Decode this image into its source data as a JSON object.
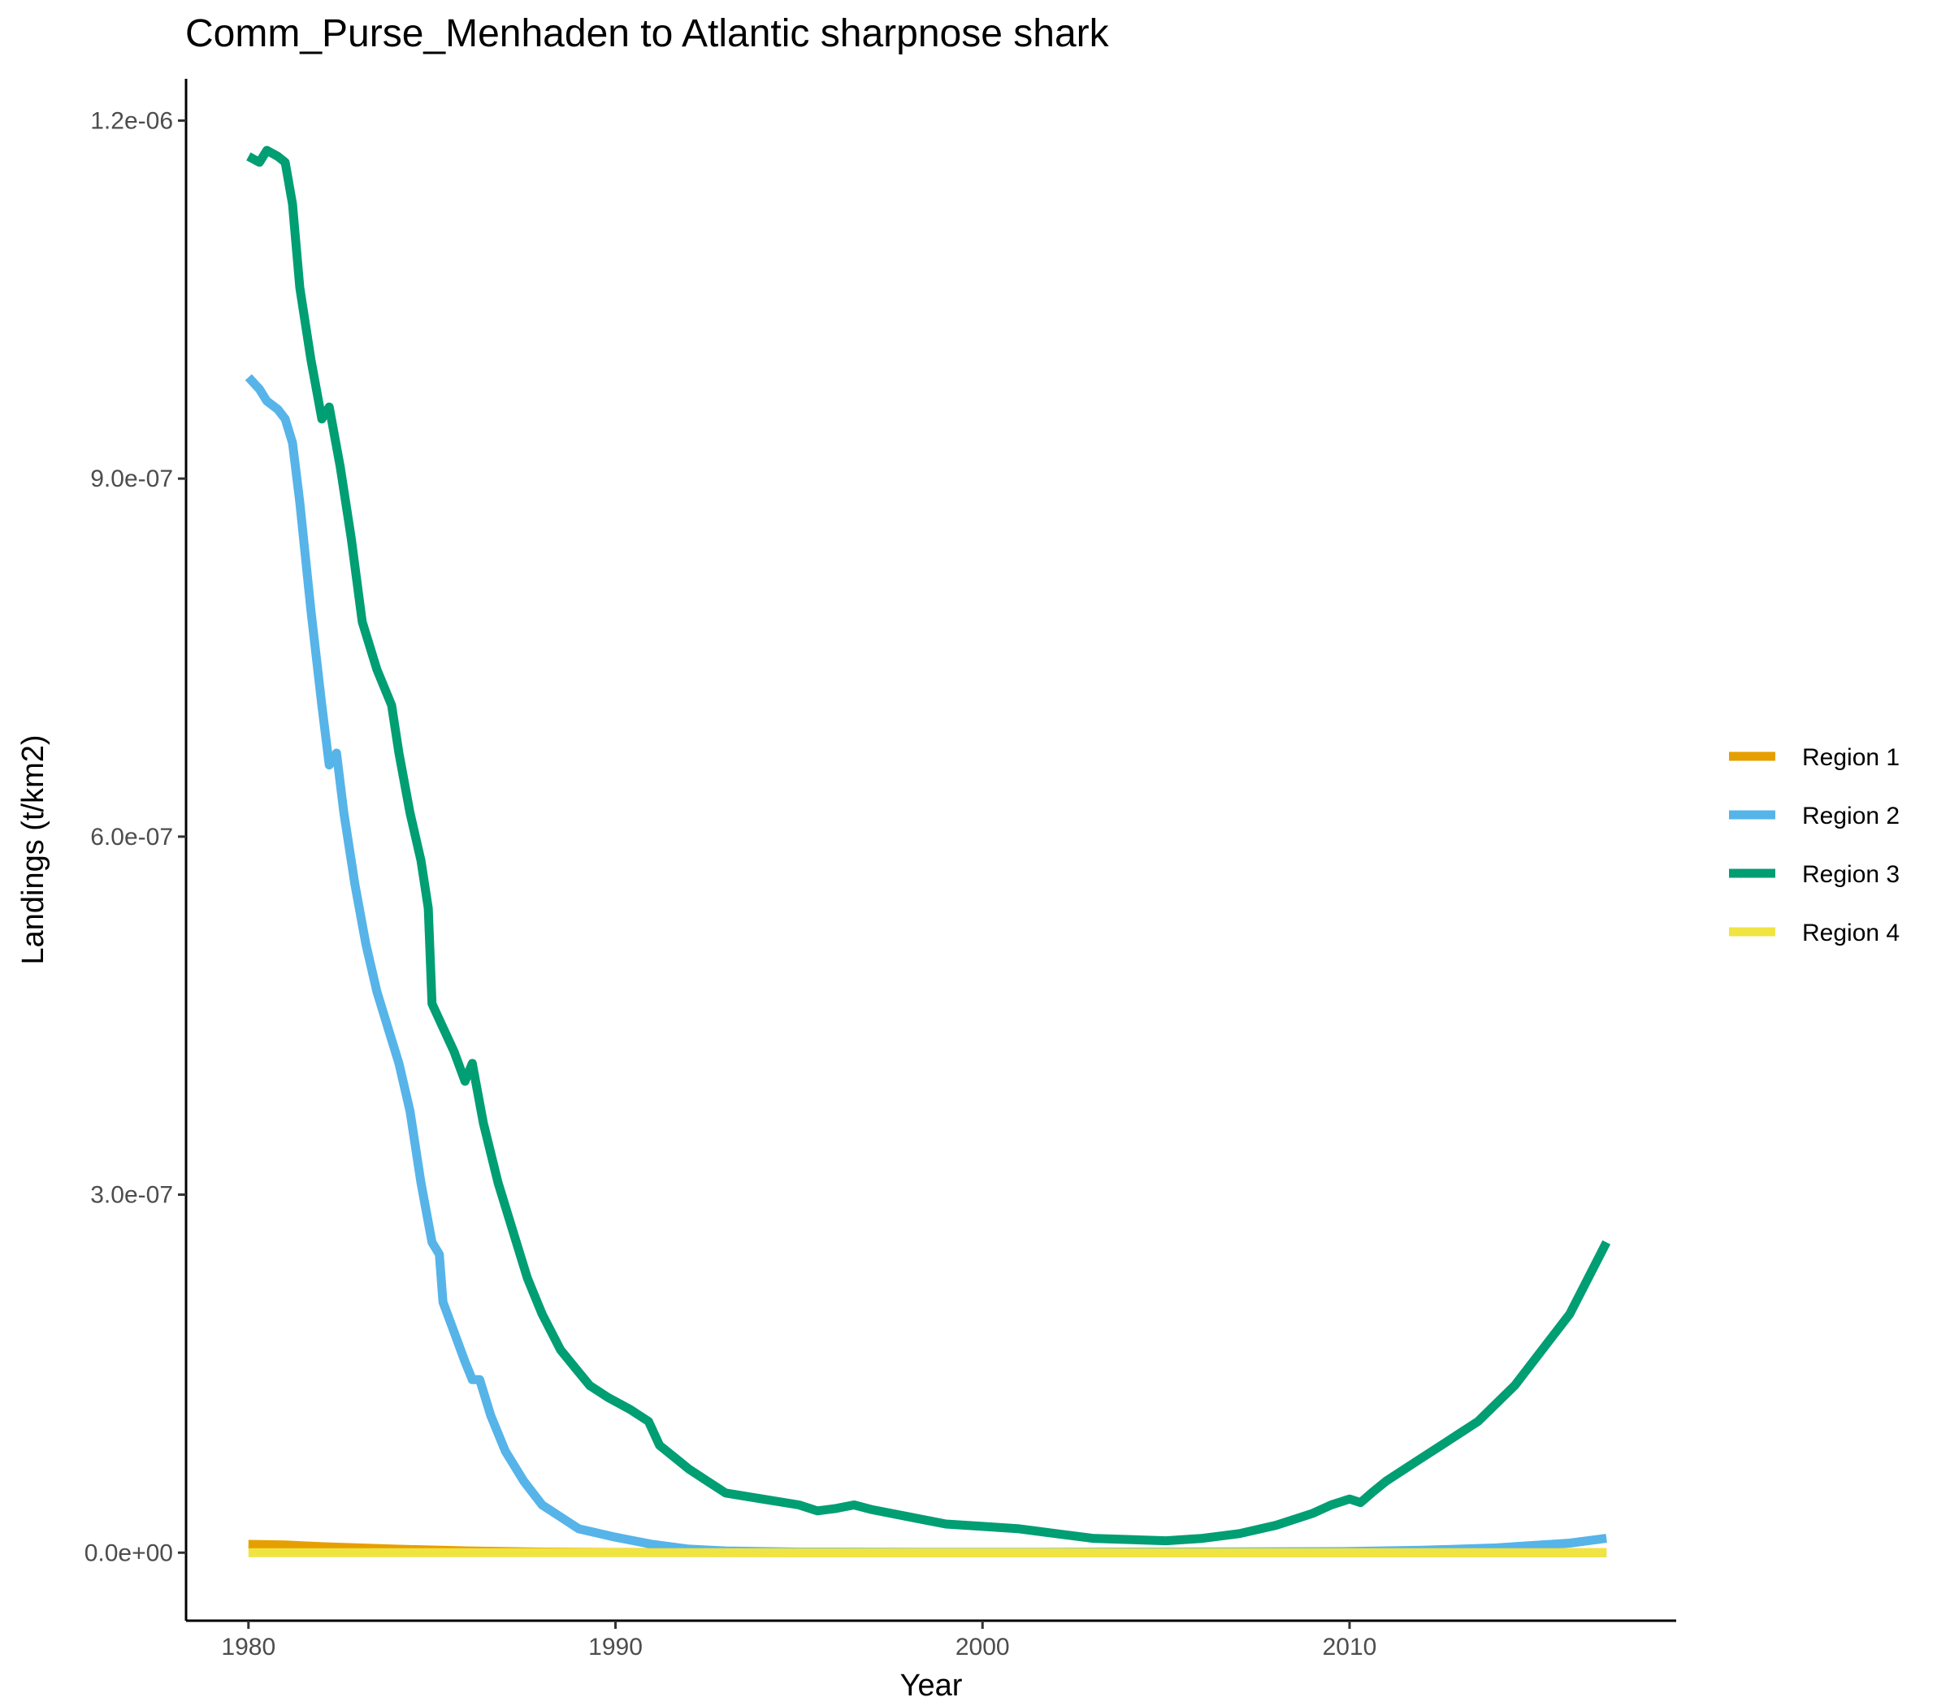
{
  "chart_data": {
    "type": "line",
    "title": "Comm_Purse_Menhaden to Atlantic sharpnose shark",
    "xlabel": "Year",
    "ylabel": "Landings (t/km2)",
    "xlim": [
      1978.3,
      2018.9
    ],
    "ylim": [
      -5.7e-08,
      1.235e-06
    ],
    "x_ticks": [
      1980,
      1990,
      2000,
      2010
    ],
    "x_tick_labels": [
      "1980",
      "1990",
      "2000",
      "2010"
    ],
    "y_ticks": [
      0,
      3e-07,
      6e-07,
      9e-07,
      1.2e-06
    ],
    "y_tick_labels": [
      "0.0e+00",
      "3.0e-07",
      "6.0e-07",
      "9.0e-07",
      "1.2e-06"
    ],
    "grid": false,
    "legend_position": "right",
    "series": [
      {
        "name": "Region 1",
        "color": "#E69F00",
        "points": [
          [
            1980,
            7e-09
          ],
          [
            1981,
            6.5e-09
          ],
          [
            1982,
            5e-09
          ],
          [
            1984,
            3e-09
          ],
          [
            1986,
            1.5e-09
          ],
          [
            1988,
            5e-10
          ],
          [
            1990,
            2e-10
          ],
          [
            1995,
            0
          ],
          [
            2017,
            0
          ]
        ]
      },
      {
        "name": "Region 2",
        "color": "#56B4E9",
        "points": [
          [
            1980,
            9.85e-07
          ],
          [
            1980.3,
            9.75e-07
          ],
          [
            1980.5,
            9.65e-07
          ],
          [
            1980.8,
            9.58e-07
          ],
          [
            1981,
            9.5e-07
          ],
          [
            1981.2,
            9.3e-07
          ],
          [
            1981.4,
            8.8e-07
          ],
          [
            1981.7,
            7.9e-07
          ],
          [
            1982,
            7.1e-07
          ],
          [
            1982.2,
            6.6e-07
          ],
          [
            1982.4,
            6.7e-07
          ],
          [
            1982.6,
            6.2e-07
          ],
          [
            1982.9,
            5.6e-07
          ],
          [
            1983.2,
            5.1e-07
          ],
          [
            1983.5,
            4.7e-07
          ],
          [
            1983.8,
            4.4e-07
          ],
          [
            1984.1,
            4.1e-07
          ],
          [
            1984.4,
            3.7e-07
          ],
          [
            1984.7,
            3.1e-07
          ],
          [
            1985,
            2.6e-07
          ],
          [
            1985.2,
            2.5e-07
          ],
          [
            1985.3,
            2.1e-07
          ],
          [
            1985.6,
            1.85e-07
          ],
          [
            1985.9,
            1.6e-07
          ],
          [
            1986.1,
            1.45e-07
          ],
          [
            1986.3,
            1.45e-07
          ],
          [
            1986.6,
            1.15e-07
          ],
          [
            1987,
            8.5e-08
          ],
          [
            1987.5,
            6e-08
          ],
          [
            1988,
            4e-08
          ],
          [
            1988.5,
            3e-08
          ],
          [
            1989,
            2e-08
          ],
          [
            1990,
            1.3e-08
          ],
          [
            1991,
            7e-09
          ],
          [
            1992,
            3e-09
          ],
          [
            1993,
            1.5e-09
          ],
          [
            1995,
            5e-10
          ],
          [
            2000,
            3e-10
          ],
          [
            2005,
            5e-10
          ],
          [
            2010,
            1e-09
          ],
          [
            2012,
            2e-09
          ],
          [
            2014,
            4e-09
          ],
          [
            2016,
            8e-09
          ],
          [
            2017,
            1.2e-08
          ]
        ]
      },
      {
        "name": "Region 3",
        "color": "#009E73",
        "points": [
          [
            1980,
            1.17e-06
          ],
          [
            1980.3,
            1.165e-06
          ],
          [
            1980.5,
            1.175e-06
          ],
          [
            1980.8,
            1.17e-06
          ],
          [
            1981,
            1.165e-06
          ],
          [
            1981.2,
            1.13e-06
          ],
          [
            1981.4,
            1.06e-06
          ],
          [
            1981.7,
            1e-06
          ],
          [
            1982,
            9.5e-07
          ],
          [
            1982.2,
            9.6e-07
          ],
          [
            1982.5,
            9.1e-07
          ],
          [
            1982.8,
            8.5e-07
          ],
          [
            1983.1,
            7.8e-07
          ],
          [
            1983.5,
            7.4e-07
          ],
          [
            1983.9,
            7.1e-07
          ],
          [
            1984.1,
            6.7e-07
          ],
          [
            1984.4,
            6.2e-07
          ],
          [
            1984.7,
            5.8e-07
          ],
          [
            1984.9,
            5.4e-07
          ],
          [
            1985,
            4.6e-07
          ],
          [
            1985.3,
            4.4e-07
          ],
          [
            1985.6,
            4.2e-07
          ],
          [
            1985.9,
            3.95e-07
          ],
          [
            1986.1,
            4.1e-07
          ],
          [
            1986.4,
            3.6e-07
          ],
          [
            1986.8,
            3.1e-07
          ],
          [
            1987.2,
            2.7e-07
          ],
          [
            1987.6,
            2.3e-07
          ],
          [
            1988,
            2e-07
          ],
          [
            1988.5,
            1.7e-07
          ],
          [
            1988.9,
            1.55e-07
          ],
          [
            1989.3,
            1.4e-07
          ],
          [
            1989.8,
            1.3e-07
          ],
          [
            1990.4,
            1.2e-07
          ],
          [
            1990.9,
            1.1e-07
          ],
          [
            1991.2,
            9e-08
          ],
          [
            1991.6,
            8e-08
          ],
          [
            1992,
            7e-08
          ],
          [
            1992.5,
            6e-08
          ],
          [
            1993,
            5e-08
          ],
          [
            1994,
            4.5e-08
          ],
          [
            1995,
            4e-08
          ],
          [
            1995.5,
            3.5e-08
          ],
          [
            1996,
            3.7e-08
          ],
          [
            1996.5,
            4e-08
          ],
          [
            1997,
            3.6e-08
          ],
          [
            1998,
            3e-08
          ],
          [
            1999,
            2.4e-08
          ],
          [
            2000,
            2.2e-08
          ],
          [
            2001,
            2e-08
          ],
          [
            2002,
            1.6e-08
          ],
          [
            2003,
            1.2e-08
          ],
          [
            2004,
            1.1e-08
          ],
          [
            2005,
            1e-08
          ],
          [
            2005.5,
            1.1e-08
          ],
          [
            2006,
            1.2e-08
          ],
          [
            2007,
            1.6e-08
          ],
          [
            2008,
            2.3e-08
          ],
          [
            2009,
            3.3e-08
          ],
          [
            2009.5,
            4e-08
          ],
          [
            2010,
            4.5e-08
          ],
          [
            2010.3,
            4.2e-08
          ],
          [
            2010.6,
            5e-08
          ],
          [
            2011,
            6e-08
          ],
          [
            2011.5,
            7e-08
          ],
          [
            2012,
            8e-08
          ],
          [
            2012.5,
            9e-08
          ],
          [
            2013,
            1e-07
          ],
          [
            2013.5,
            1.1e-07
          ],
          [
            2014,
            1.25e-07
          ],
          [
            2014.5,
            1.4e-07
          ],
          [
            2015,
            1.6e-07
          ],
          [
            2015.5,
            1.8e-07
          ],
          [
            2016,
            2e-07
          ],
          [
            2016.5,
            2.3e-07
          ],
          [
            2017,
            2.6e-07
          ]
        ]
      },
      {
        "name": "Region 4",
        "color": "#F0E442",
        "points": [
          [
            1980,
            0
          ],
          [
            2017,
            0
          ]
        ]
      }
    ]
  }
}
